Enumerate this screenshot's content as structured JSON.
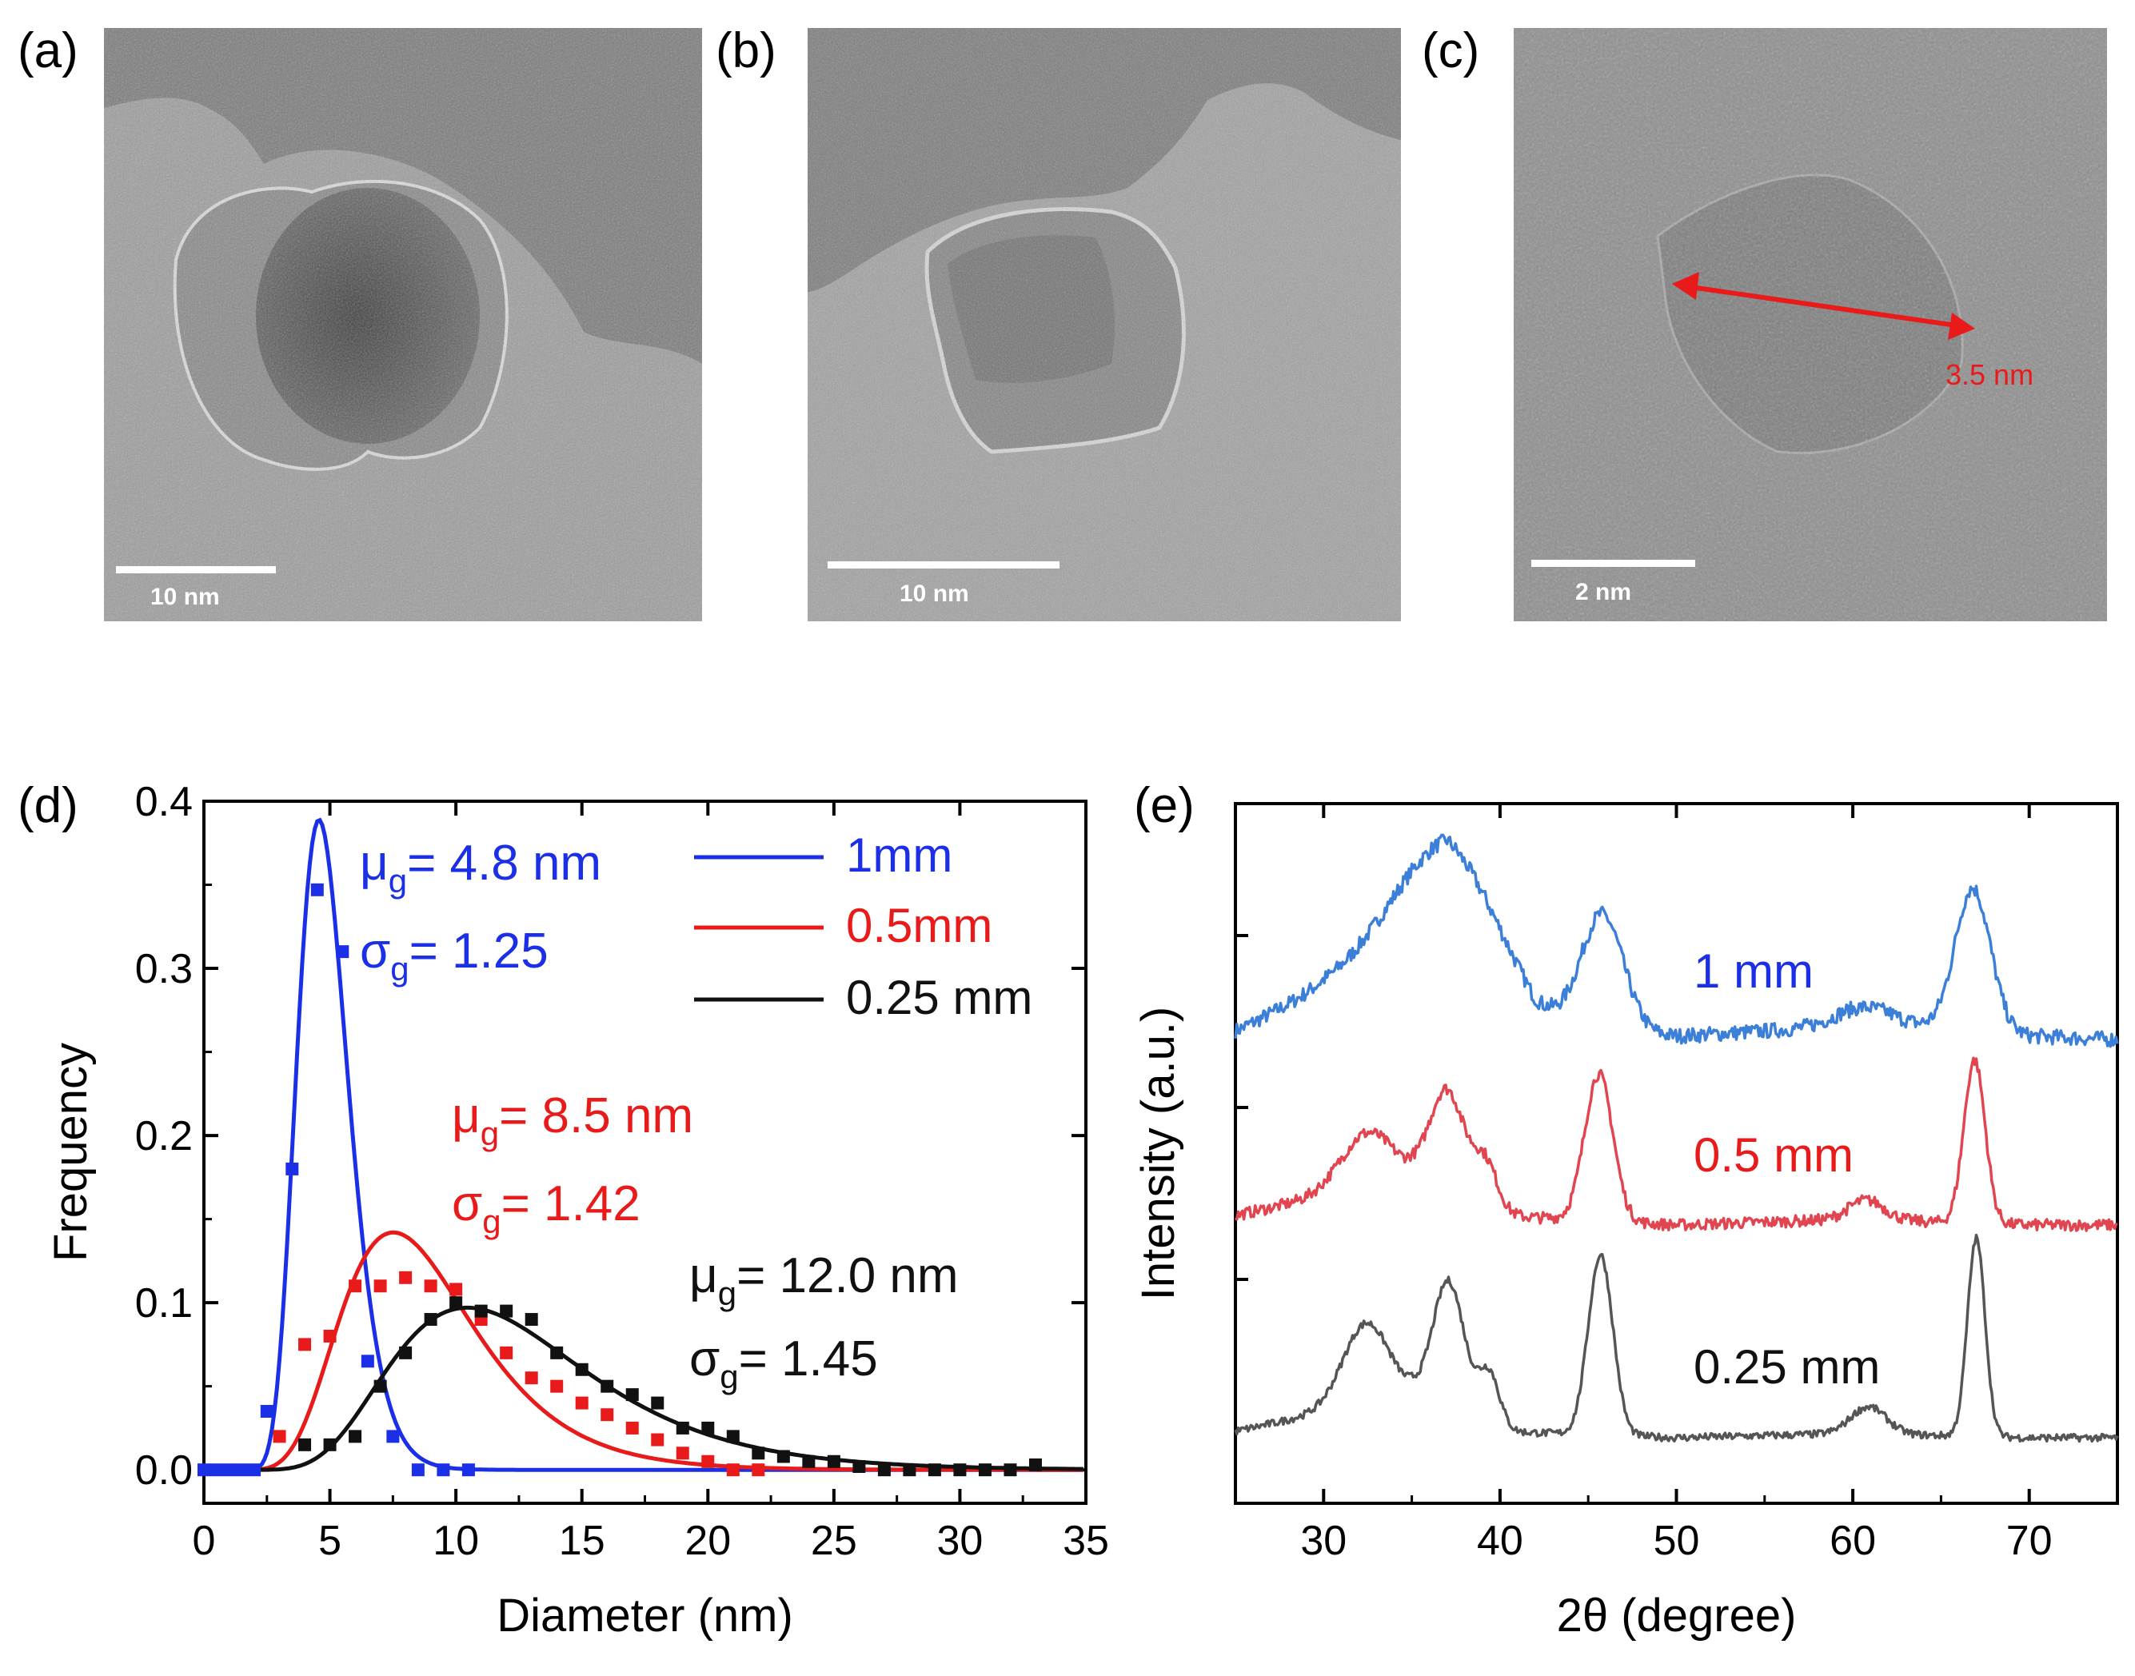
{
  "panels": {
    "a": {
      "label": "(a)",
      "scale": "10 nm"
    },
    "b": {
      "label": "(b)",
      "scale": "10 nm"
    },
    "c": {
      "label": "(c)",
      "scale": "2 nm",
      "measurement": "3.5 nm"
    },
    "d": {
      "label": "(d)"
    },
    "e": {
      "label": "(e)"
    }
  },
  "colors": {
    "blue": "#1a2fe6",
    "red": "#e81a1a",
    "black": "#111111",
    "xrd_blue": "#3b7fd8",
    "xrd_red": "#e04550",
    "xrd_gray": "#555555"
  },
  "chart_data": [
    {
      "type": "scatter",
      "title": "",
      "xlabel": "Diameter (nm)",
      "ylabel": "Frequency",
      "xlim": [
        0,
        35
      ],
      "ylim": [
        -0.02,
        0.4
      ],
      "xticks": [
        "0",
        "5",
        "10",
        "15",
        "20",
        "25",
        "30",
        "35"
      ],
      "yticks": [
        "0.0",
        "0.1",
        "0.2",
        "0.3",
        "0.4"
      ],
      "legend": [
        {
          "name": "1mm",
          "color": "#1a2fe6"
        },
        {
          "name": "0.5mm",
          "color": "#e81a1a"
        },
        {
          "name": "0.25 mm",
          "color": "#111111"
        }
      ],
      "series": [
        {
          "name": "1mm",
          "color": "#1a2fe6",
          "fit": {
            "mu_g": 4.8,
            "sigma_g": 1.25,
            "peak_x": 4.5,
            "peak_y": 0.388
          },
          "points": [
            [
              0,
              0
            ],
            [
              0.5,
              0
            ],
            [
              1,
              0
            ],
            [
              1.5,
              0
            ],
            [
              2,
              0
            ],
            [
              2.5,
              0.035
            ],
            [
              3.5,
              0.18
            ],
            [
              4.5,
              0.347
            ],
            [
              5.5,
              0.31
            ],
            [
              6.5,
              0.065
            ],
            [
              7.5,
              0.02
            ],
            [
              8.5,
              0
            ],
            [
              9.5,
              0
            ],
            [
              10.5,
              0
            ]
          ]
        },
        {
          "name": "0.5mm",
          "color": "#e81a1a",
          "fit": {
            "mu_g": 8.5,
            "sigma_g": 1.42,
            "peak_x": 7.5,
            "peak_y": 0.142
          },
          "points": [
            [
              3,
              0.02
            ],
            [
              4,
              0.075
            ],
            [
              5,
              0.08
            ],
            [
              6,
              0.11
            ],
            [
              7,
              0.11
            ],
            [
              8,
              0.115
            ],
            [
              9,
              0.11
            ],
            [
              10,
              0.108
            ],
            [
              11,
              0.09
            ],
            [
              12,
              0.07
            ],
            [
              13,
              0.055
            ],
            [
              14,
              0.05
            ],
            [
              15,
              0.04
            ],
            [
              16,
              0.033
            ],
            [
              17,
              0.025
            ],
            [
              18,
              0.018
            ],
            [
              19,
              0.01
            ],
            [
              20,
              0.005
            ],
            [
              21,
              0
            ],
            [
              22,
              0
            ]
          ]
        },
        {
          "name": "0.25 mm",
          "color": "#111111",
          "fit": {
            "mu_g": 12.0,
            "sigma_g": 1.45,
            "peak_x": 10.5,
            "peak_y": 0.097
          },
          "points": [
            [
              4,
              0.015
            ],
            [
              5,
              0.015
            ],
            [
              6,
              0.02
            ],
            [
              7,
              0.05
            ],
            [
              8,
              0.07
            ],
            [
              9,
              0.09
            ],
            [
              10,
              0.1
            ],
            [
              11,
              0.095
            ],
            [
              12,
              0.095
            ],
            [
              13,
              0.09
            ],
            [
              14,
              0.07
            ],
            [
              15,
              0.06
            ],
            [
              16,
              0.05
            ],
            [
              17,
              0.045
            ],
            [
              18,
              0.04
            ],
            [
              19,
              0.025
            ],
            [
              20,
              0.025
            ],
            [
              21,
              0.02
            ],
            [
              22,
              0.01
            ],
            [
              23,
              0.008
            ],
            [
              24,
              0.005
            ],
            [
              25,
              0.005
            ],
            [
              26,
              0.002
            ],
            [
              27,
              0
            ],
            [
              28,
              0
            ],
            [
              29,
              0
            ],
            [
              30,
              0
            ],
            [
              31,
              0
            ],
            [
              32,
              0
            ],
            [
              33,
              0.003
            ]
          ]
        }
      ],
      "annotations": [
        {
          "text": "μg= 4.8 nm",
          "color": "#1a2fe6"
        },
        {
          "text": "σg= 1.25",
          "color": "#1a2fe6"
        },
        {
          "text": "μg= 8.5 nm",
          "color": "#e81a1a"
        },
        {
          "text": "σg= 1.42",
          "color": "#e81a1a"
        },
        {
          "text": "μg= 12.0 nm",
          "color": "#111111"
        },
        {
          "text": "σg= 1.45",
          "color": "#111111"
        }
      ]
    },
    {
      "type": "line",
      "title": "",
      "xlabel": "2θ (degree)",
      "ylabel": "Intensity (a.u.)",
      "xlim": [
        25,
        75
      ],
      "xticks": [
        "30",
        "40",
        "50",
        "60",
        "70"
      ],
      "series": [
        {
          "name": "1 mm",
          "color": "#3b7fd8",
          "peaks": [
            {
              "x": 37,
              "h": 0.75,
              "w": 3.2
            },
            {
              "x": 45.8,
              "h": 0.82,
              "w": 1.2
            },
            {
              "x": 60.5,
              "h": 0.12,
              "w": 1.5
            },
            {
              "x": 66.8,
              "h": 1.0,
              "w": 1.0
            }
          ],
          "baseline": [
            [
              25,
              0.05
            ],
            [
              30,
              0.3
            ],
            [
              37,
              0.55
            ],
            [
              42,
              0.05
            ],
            [
              50,
              0.02
            ],
            [
              55,
              0.05
            ],
            [
              62,
              0.1
            ],
            [
              70,
              0.02
            ],
            [
              75,
              0.0
            ]
          ]
        },
        {
          "name": "0.5 mm",
          "color": "#e04550",
          "peaks": [
            {
              "x": 32.5,
              "h": 0.35,
              "w": 1.5
            },
            {
              "x": 37,
              "h": 0.65,
              "w": 1.0
            },
            {
              "x": 39.2,
              "h": 0.28,
              "w": 0.7
            },
            {
              "x": 45.6,
              "h": 0.9,
              "w": 0.8
            },
            {
              "x": 60.8,
              "h": 0.12,
              "w": 1.0
            },
            {
              "x": 66.9,
              "h": 1.0,
              "w": 0.6
            }
          ],
          "baseline": [
            [
              25,
              0.05
            ],
            [
              30,
              0.15
            ],
            [
              35,
              0.22
            ],
            [
              40,
              0.05
            ],
            [
              50,
              0.0
            ],
            [
              60,
              0.03
            ],
            [
              70,
              0.0
            ],
            [
              75,
              0.0
            ]
          ]
        },
        {
          "name": "0.25 mm",
          "color": "#555555",
          "peaks": [
            {
              "x": 32.4,
              "h": 0.45,
              "w": 1.3
            },
            {
              "x": 37.1,
              "h": 0.72,
              "w": 0.9
            },
            {
              "x": 39.4,
              "h": 0.3,
              "w": 0.6
            },
            {
              "x": 45.7,
              "h": 1.0,
              "w": 0.7
            },
            {
              "x": 60.9,
              "h": 0.15,
              "w": 1.0
            },
            {
              "x": 67.0,
              "h": 1.1,
              "w": 0.5
            }
          ],
          "baseline": [
            [
              25,
              0.03
            ],
            [
              30,
              0.12
            ],
            [
              35,
              0.2
            ],
            [
              40,
              0.03
            ],
            [
              50,
              0.0
            ],
            [
              60,
              0.02
            ],
            [
              70,
              0.0
            ],
            [
              75,
              0.0
            ]
          ]
        }
      ],
      "series_labels": [
        {
          "text": "1 mm",
          "color": "#1a2fe6"
        },
        {
          "text": "0.5 mm",
          "color": "#e81a1a"
        },
        {
          "text": "0.25 mm",
          "color": "#111111"
        }
      ]
    }
  ]
}
